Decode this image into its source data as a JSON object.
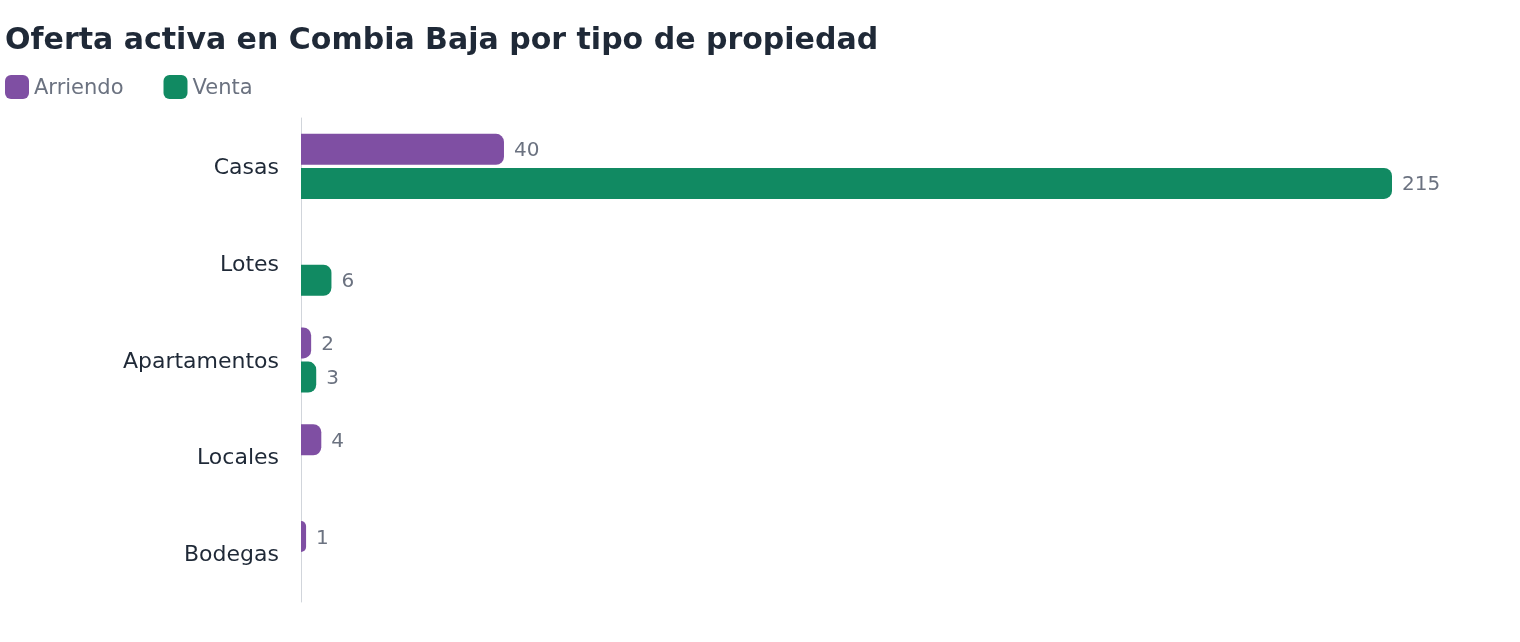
{
  "chart_data": {
    "type": "bar",
    "orientation": "horizontal",
    "title": "Oferta activa en Combia Baja por tipo de propiedad",
    "categories": [
      "Casas",
      "Lotes",
      "Apartamentos",
      "Locales",
      "Bodegas"
    ],
    "series": [
      {
        "name": "Arriendo",
        "color": "#7f4fa3",
        "values": [
          40,
          null,
          2,
          4,
          1
        ]
      },
      {
        "name": "Venta",
        "color": "#118a62",
        "values": [
          215,
          6,
          3,
          null,
          null
        ]
      }
    ],
    "data_labels": true,
    "legend": "top left",
    "grid": false
  }
}
